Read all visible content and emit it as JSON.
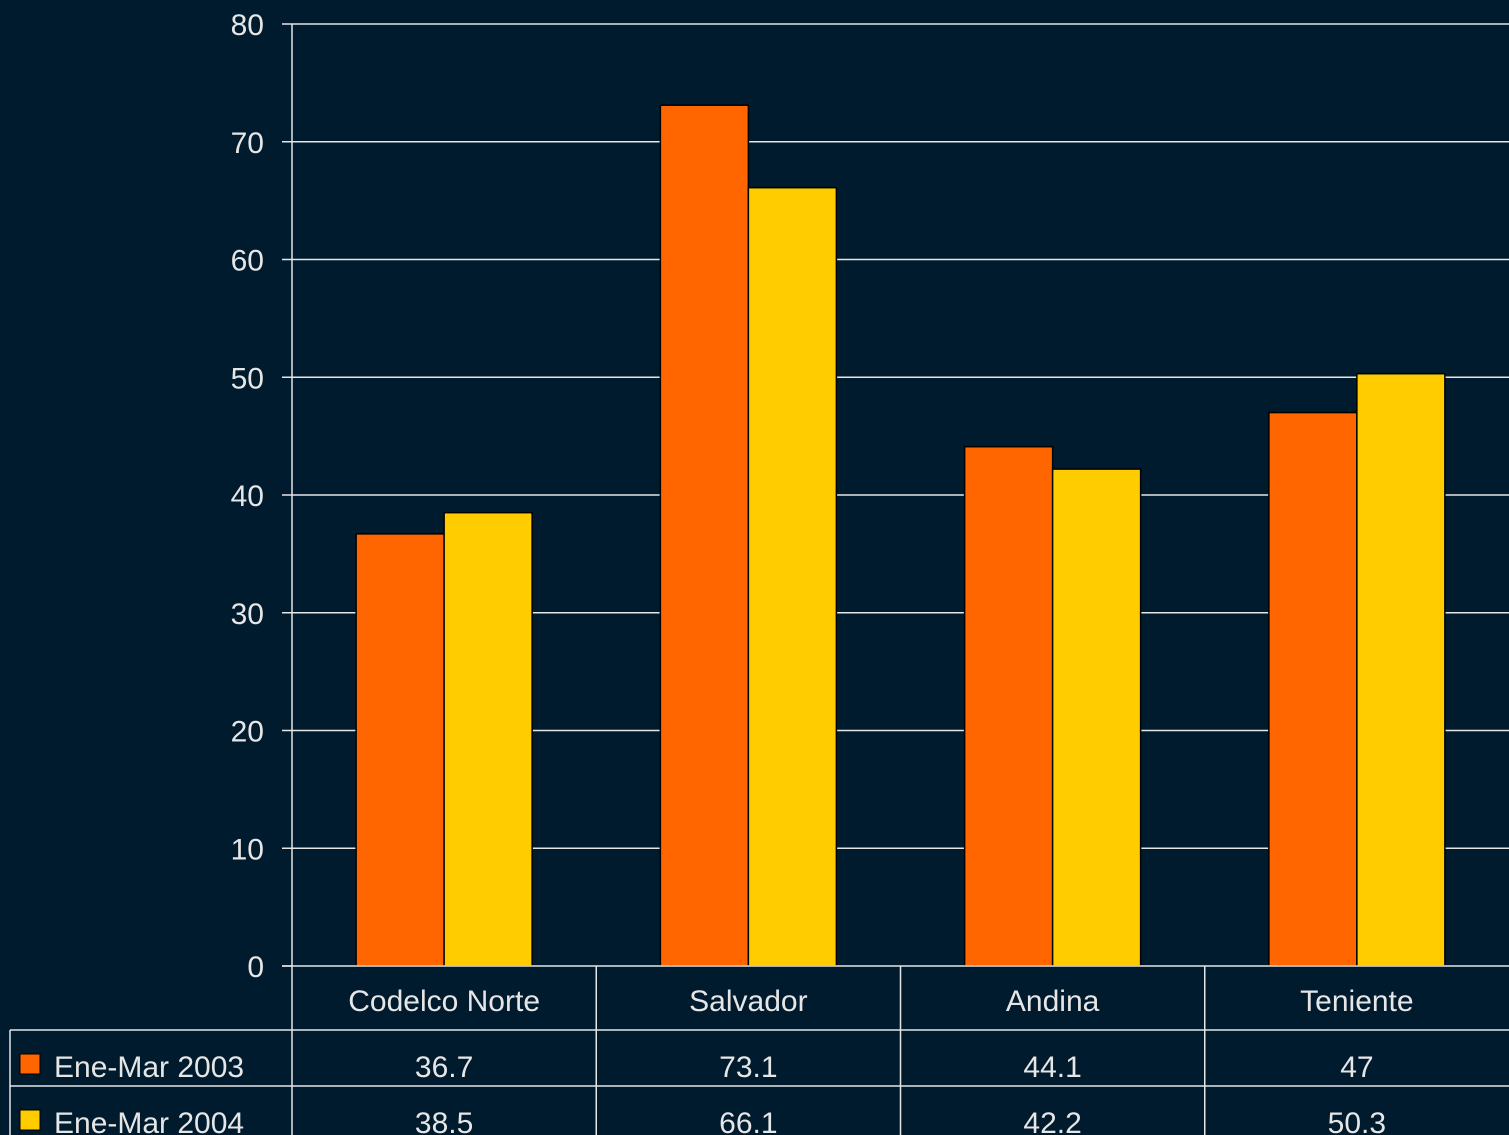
{
  "chart_data": {
    "type": "bar",
    "categories": [
      "Codelco Norte",
      "Salvador",
      "Andina",
      "Teniente"
    ],
    "series": [
      {
        "name": "Ene-Mar 2003",
        "values": [
          36.7,
          73.1,
          44.1,
          47
        ],
        "labels": [
          "36.7",
          "73.1",
          "44.1",
          "47"
        ],
        "color": "#ff6600"
      },
      {
        "name": "Ene-Mar 2004",
        "values": [
          38.5,
          66.1,
          42.2,
          50.3
        ],
        "labels": [
          "38.5",
          "66.1",
          "42.2",
          "50.3"
        ],
        "color": "#ffcc00"
      }
    ],
    "ylim": [
      0,
      80
    ],
    "yticks": [
      0,
      10,
      20,
      30,
      40,
      50,
      60,
      70,
      80
    ],
    "ytick_labels": [
      "0",
      "10",
      "20",
      "30",
      "40",
      "50",
      "60",
      "70",
      "80"
    ],
    "grid": true,
    "legend": "data-table-below",
    "title": "",
    "xlabel": "",
    "ylabel": ""
  },
  "colors": {
    "background": "#001b2e",
    "text": "#e6e6e6",
    "gridline": "#e6e6e6"
  }
}
